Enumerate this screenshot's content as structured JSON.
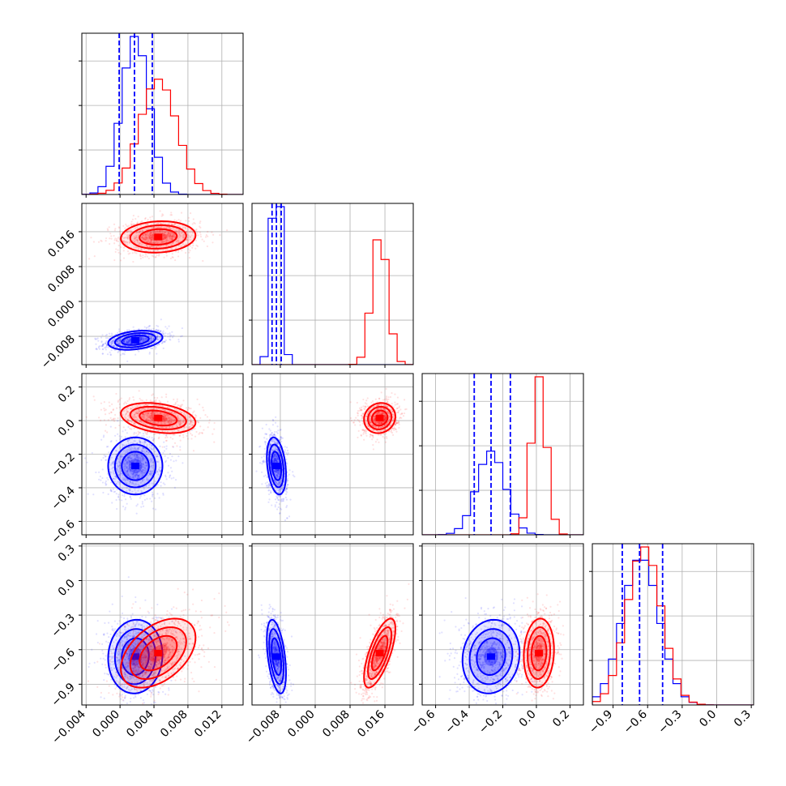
{
  "chart_data": {
    "type": "corner",
    "colors": {
      "series_a": "#0000ff",
      "series_b": "#ff0000",
      "grid": "#b0b0b0",
      "frame": "#000000"
    },
    "grid": true,
    "quantile_lines": {
      "style": "dashed",
      "color": "#0000ff"
    },
    "parameters": [
      {
        "range": [
          -0.0045,
          0.0145
        ],
        "ticks": [
          -0.004,
          0.0,
          0.004,
          0.008,
          0.012
        ],
        "tick_labels": [
          "−0.004",
          "0.000",
          "0.004",
          "0.008",
          "0.012"
        ],
        "quantiles": [
          -0.0001,
          0.0017,
          0.0038
        ]
      },
      {
        "range": [
          -0.0145,
          0.0225
        ],
        "ticks": [
          -0.008,
          0.0,
          0.008,
          0.016
        ],
        "tick_labels": [
          "−0.008",
          "0.000",
          "0.008",
          "0.016"
        ],
        "quantiles": [
          -0.0099,
          -0.0089,
          -0.0078
        ]
      },
      {
        "range": [
          -0.68,
          0.28
        ],
        "ticks": [
          -0.6,
          -0.4,
          -0.2,
          0.0,
          0.2
        ],
        "tick_labels": [
          "−0.6",
          "−0.4",
          "−0.2",
          "0.0",
          "0.2"
        ],
        "quantiles": [
          -0.37,
          -0.27,
          -0.155
        ]
      },
      {
        "range": [
          -1.08,
          0.32
        ],
        "ticks": [
          -0.9,
          -0.6,
          -0.3,
          0.0,
          0.3
        ],
        "tick_labels": [
          "−0.9",
          "−0.6",
          "−0.3",
          "0.0",
          "0.3"
        ],
        "quantiles": [
          -0.82,
          -0.67,
          -0.47
        ]
      }
    ],
    "series": [
      {
        "color": "#0000ff",
        "means": [
          0.0018,
          -0.0089,
          -0.27,
          -0.66
        ],
        "stds": [
          0.0016,
          0.0011,
          0.085,
          0.16
        ],
        "correlations": [
          [
            0,
            1,
            0.3
          ],
          [
            0,
            2,
            0.0
          ],
          [
            0,
            3,
            0.05
          ],
          [
            1,
            2,
            -0.3
          ],
          [
            1,
            3,
            -0.45
          ],
          [
            2,
            3,
            0.1
          ]
        ]
      },
      {
        "color": "#ff0000",
        "means": [
          0.0045,
          0.0148,
          0.015,
          -0.63
        ],
        "stds": [
          0.0022,
          0.0018,
          0.045,
          0.15
        ],
        "correlations": [
          [
            0,
            1,
            0.1
          ],
          [
            0,
            2,
            -0.3
          ],
          [
            0,
            3,
            0.45
          ],
          [
            1,
            2,
            0.1
          ],
          [
            1,
            3,
            0.7
          ],
          [
            2,
            3,
            0.1
          ]
        ]
      }
    ]
  }
}
